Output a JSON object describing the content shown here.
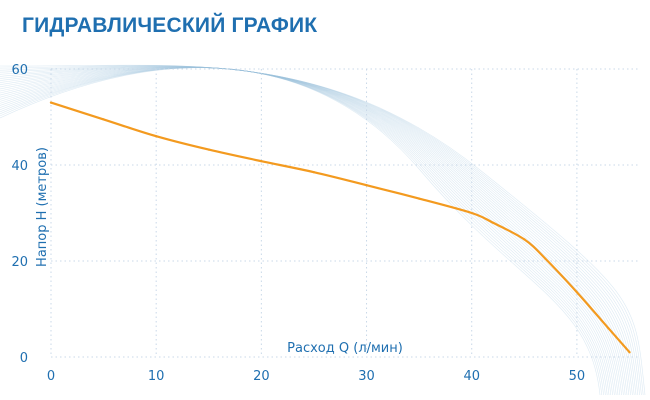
{
  "title": "ГИДРАВЛИЧЕСКИЙ ГРАФИК",
  "colors": {
    "title": "#1f6fb0",
    "axis_text": "#1f6fb0",
    "grid": "#c9d8e8",
    "curve": "#f39a1f",
    "decor_wave": "#9ec4de"
  },
  "chart_data": {
    "type": "line",
    "title": "ГИДРАВЛИЧЕСКИЙ ГРАФИК",
    "xlabel": "Расход Q (л/мин)",
    "ylabel": "Напор H (метров)",
    "xlim": [
      0,
      56
    ],
    "ylim": [
      0,
      60
    ],
    "x_ticks": [
      0,
      10,
      20,
      30,
      40,
      50
    ],
    "y_ticks": [
      0,
      20,
      40,
      60
    ],
    "grid": "dotted",
    "legend": "none",
    "series": [
      {
        "x": [
          0,
          5,
          10,
          15,
          20,
          25,
          30,
          35,
          40,
          42,
          45,
          47,
          50,
          53,
          55
        ],
        "y": [
          53,
          49.5,
          46,
          43.2,
          40.8,
          38.5,
          35.8,
          33,
          30,
          28,
          24.5,
          20.5,
          13.5,
          6,
          1
        ]
      }
    ]
  }
}
